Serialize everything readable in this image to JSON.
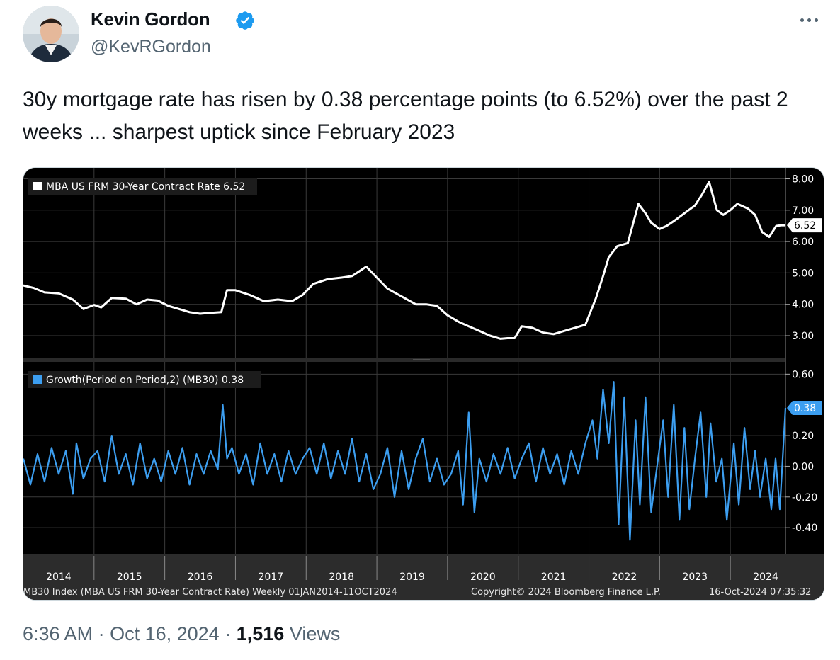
{
  "author": {
    "name": "Kevin Gordon",
    "handle": "@KevRGordon"
  },
  "tweet": {
    "text": "30y mortgage rate has risen by 0.38 percentage points (to 6.52%) over the past 2 weeks ... sharpest uptick since February 2023"
  },
  "footer": {
    "time": "6:36 AM",
    "date": "Oct 16, 2024",
    "separator": "·",
    "views_count": "1,516",
    "views_label": "Views"
  },
  "colors": {
    "verified_badge": "#1d9bf0",
    "rate_line": "#ffffff",
    "growth_line": "#3c9ef0",
    "chart_background": "#000000",
    "grid": "#3a3a3a"
  },
  "icons": {
    "verified": "verified-badge-icon",
    "more": "more-options-icon"
  },
  "chart_data": [
    {
      "type": "line",
      "legend": "MBA US FRM 30-Year Contract Rate 6.52",
      "last_value_label": "6.52",
      "y_ticks": [
        "8.00",
        "7.00",
        "6.00",
        "5.00",
        "4.00",
        "3.00"
      ],
      "ylim": [
        2.3,
        8.35
      ],
      "xlim": [
        2014.0,
        2024.78
      ],
      "series": [
        {
          "name": "MBA US FRM 30-Year Contract Rate",
          "x": [
            2014.0,
            2014.15,
            2014.3,
            2014.5,
            2014.7,
            2014.85,
            2015.0,
            2015.1,
            2015.25,
            2015.45,
            2015.6,
            2015.75,
            2015.9,
            2016.05,
            2016.2,
            2016.35,
            2016.5,
            2016.6,
            2016.8,
            2016.88,
            2017.0,
            2017.2,
            2017.4,
            2017.6,
            2017.8,
            2017.95,
            2018.1,
            2018.3,
            2018.5,
            2018.65,
            2018.85,
            2019.0,
            2019.15,
            2019.35,
            2019.55,
            2019.7,
            2019.85,
            2020.0,
            2020.15,
            2020.3,
            2020.45,
            2020.6,
            2020.75,
            2020.85,
            2020.95,
            2021.05,
            2021.2,
            2021.35,
            2021.5,
            2021.65,
            2021.8,
            2021.95,
            2022.1,
            2022.2,
            2022.28,
            2022.4,
            2022.55,
            2022.7,
            2022.8,
            2022.88,
            2023.0,
            2023.1,
            2023.2,
            2023.35,
            2023.5,
            2023.6,
            2023.7,
            2023.81,
            2023.9,
            2024.0,
            2024.1,
            2024.25,
            2024.35,
            2024.45,
            2024.55,
            2024.65,
            2024.72,
            2024.78
          ],
          "y": [
            4.6,
            4.52,
            4.38,
            4.35,
            4.15,
            3.85,
            3.98,
            3.9,
            4.2,
            4.18,
            4.0,
            4.15,
            4.12,
            3.95,
            3.85,
            3.75,
            3.7,
            3.72,
            3.75,
            4.45,
            4.45,
            4.3,
            4.1,
            4.15,
            4.1,
            4.3,
            4.65,
            4.8,
            4.85,
            4.9,
            5.2,
            4.85,
            4.5,
            4.25,
            4.0,
            4.0,
            3.95,
            3.65,
            3.45,
            3.3,
            3.15,
            3.0,
            2.9,
            2.92,
            2.92,
            3.3,
            3.25,
            3.1,
            3.05,
            3.15,
            3.25,
            3.35,
            4.2,
            4.9,
            5.5,
            5.85,
            5.95,
            7.2,
            6.9,
            6.6,
            6.4,
            6.5,
            6.65,
            6.9,
            7.15,
            7.5,
            7.9,
            7.0,
            6.85,
            7.0,
            7.2,
            7.05,
            6.85,
            6.3,
            6.15,
            6.5,
            6.52,
            6.52
          ]
        }
      ]
    },
    {
      "type": "line",
      "legend": "Growth(Period on Period,2) (MB30) 0.38",
      "last_value_label": "0.38",
      "y_ticks": [
        "0.60",
        "0.20",
        "0.00",
        "-0.20",
        "-0.40"
      ],
      "ylim": [
        -0.57,
        0.68
      ],
      "xlim": [
        2014.0,
        2024.78
      ],
      "series": [
        {
          "name": "Growth(Period on Period,2) (MB30)",
          "x": [
            2014.0,
            2014.1,
            2014.2,
            2014.3,
            2014.4,
            2014.5,
            2014.6,
            2014.7,
            2014.75,
            2014.85,
            2014.95,
            2015.05,
            2015.15,
            2015.25,
            2015.35,
            2015.45,
            2015.55,
            2015.65,
            2015.75,
            2015.85,
            2015.95,
            2016.05,
            2016.15,
            2016.25,
            2016.35,
            2016.45,
            2016.55,
            2016.65,
            2016.75,
            2016.82,
            2016.88,
            2016.95,
            2017.05,
            2017.15,
            2017.25,
            2017.35,
            2017.45,
            2017.55,
            2017.65,
            2017.75,
            2017.85,
            2017.95,
            2018.05,
            2018.15,
            2018.25,
            2018.35,
            2018.45,
            2018.55,
            2018.65,
            2018.75,
            2018.85,
            2018.95,
            2019.05,
            2019.15,
            2019.25,
            2019.35,
            2019.45,
            2019.55,
            2019.65,
            2019.75,
            2019.85,
            2019.95,
            2020.05,
            2020.15,
            2020.22,
            2020.3,
            2020.38,
            2020.45,
            2020.55,
            2020.65,
            2020.75,
            2020.85,
            2020.95,
            2021.05,
            2021.15,
            2021.25,
            2021.35,
            2021.45,
            2021.55,
            2021.65,
            2021.75,
            2021.85,
            2021.95,
            2022.05,
            2022.12,
            2022.2,
            2022.28,
            2022.35,
            2022.42,
            2022.5,
            2022.58,
            2022.66,
            2022.72,
            2022.8,
            2022.88,
            2022.95,
            2023.05,
            2023.12,
            2023.2,
            2023.28,
            2023.35,
            2023.42,
            2023.5,
            2023.58,
            2023.66,
            2023.72,
            2023.8,
            2023.88,
            2023.95,
            2024.05,
            2024.12,
            2024.2,
            2024.28,
            2024.35,
            2024.42,
            2024.5,
            2024.58,
            2024.64,
            2024.7,
            2024.78
          ],
          "y": [
            0.05,
            -0.12,
            0.08,
            -0.1,
            0.12,
            -0.05,
            0.1,
            -0.18,
            0.15,
            -0.08,
            0.05,
            0.1,
            -0.1,
            0.2,
            -0.05,
            0.08,
            -0.12,
            0.15,
            -0.08,
            0.05,
            -0.1,
            0.1,
            -0.05,
            0.12,
            -0.12,
            0.08,
            -0.05,
            0.1,
            -0.02,
            0.4,
            0.05,
            0.12,
            -0.05,
            0.08,
            -0.12,
            0.15,
            -0.05,
            0.08,
            -0.1,
            0.1,
            -0.05,
            0.05,
            0.12,
            -0.05,
            0.15,
            -0.08,
            0.1,
            -0.05,
            0.18,
            -0.1,
            0.08,
            -0.15,
            -0.05,
            0.12,
            -0.2,
            0.1,
            -0.15,
            0.05,
            0.18,
            -0.1,
            0.05,
            -0.12,
            -0.05,
            0.1,
            -0.25,
            0.35,
            -0.3,
            0.05,
            -0.1,
            0.08,
            -0.05,
            0.12,
            -0.08,
            0.05,
            0.15,
            -0.1,
            0.12,
            -0.05,
            0.08,
            -0.12,
            0.1,
            -0.05,
            0.15,
            0.3,
            0.05,
            0.5,
            0.15,
            0.55,
            -0.38,
            0.45,
            -0.48,
            0.3,
            -0.25,
            0.45,
            -0.3,
            -0.05,
            0.3,
            -0.2,
            0.4,
            -0.35,
            0.25,
            -0.28,
            0.05,
            0.35,
            -0.2,
            0.28,
            -0.1,
            0.05,
            -0.35,
            0.15,
            -0.25,
            0.25,
            -0.15,
            0.1,
            -0.2,
            0.05,
            -0.28,
            0.05,
            -0.28,
            0.38
          ]
        }
      ]
    }
  ],
  "x_axis": {
    "labels": [
      "2014",
      "2015",
      "2016",
      "2017",
      "2018",
      "2019",
      "2020",
      "2021",
      "2022",
      "2023",
      "2024"
    ]
  },
  "chart_footer": {
    "left": "MB30 Index (MBA US FRM 30-Year Contract Rate)  Weekly 01JAN2014-11OCT2024",
    "center": "Copyright© 2024 Bloomberg Finance L.P.",
    "right": "16-Oct-2024 07:35:32"
  }
}
